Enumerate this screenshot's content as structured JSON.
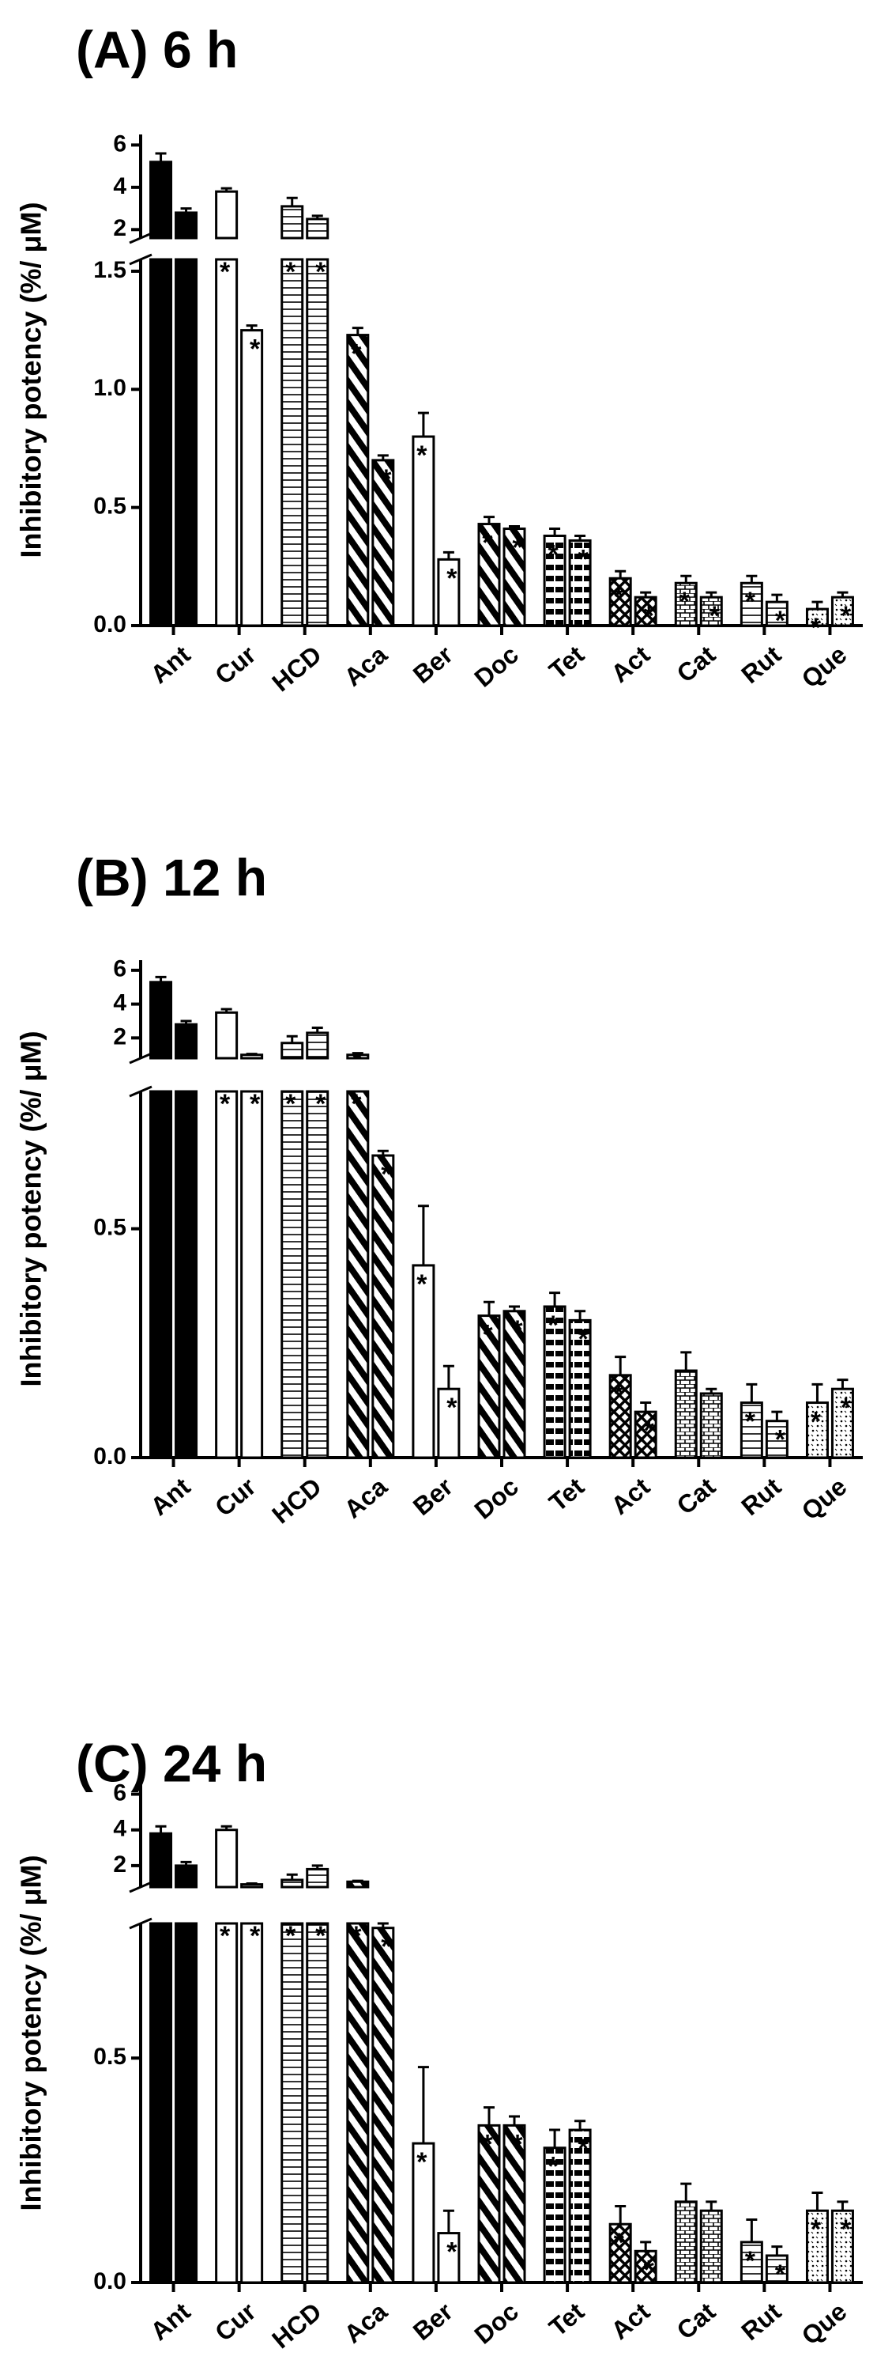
{
  "chart_data": [
    {
      "type": "bar",
      "title": "(A) 6 h",
      "y_label": "Inhibitory potency (%/ μM)",
      "significance_label": "*",
      "categories": [
        "Ant",
        "Cur",
        "HCD",
        "Aca",
        "Ber",
        "Doc",
        "Tet",
        "Act",
        "Cat",
        "Rut",
        "Que"
      ],
      "patterns": [
        "solid",
        "none",
        "hlines",
        "diag",
        "none",
        "diag",
        "hthick",
        "cross",
        "brick",
        "hlines",
        "dots"
      ],
      "series": [
        {
          "color": "#000000",
          "values": [
            5.2,
            3.8,
            3.1,
            1.23,
            0.8,
            0.43,
            0.38,
            0.2,
            0.18,
            0.18,
            0.07
          ],
          "errors": [
            0.4,
            0.15,
            0.4,
            0.03,
            0.1,
            0.03,
            0.03,
            0.03,
            0.03,
            0.03,
            0.03
          ],
          "significant": [
            true,
            true,
            true,
            true,
            true,
            true,
            true,
            true,
            true,
            true,
            true
          ]
        },
        {
          "color": "#000000",
          "values": [
            2.8,
            1.25,
            2.5,
            0.7,
            0.28,
            0.41,
            0.36,
            0.12,
            0.12,
            0.1,
            0.12
          ],
          "errors": [
            0.2,
            0.02,
            0.15,
            0.02,
            0.03,
            0.01,
            0.02,
            0.02,
            0.02,
            0.03,
            0.02
          ],
          "significant": [
            true,
            true,
            true,
            true,
            true,
            true,
            true,
            true,
            true,
            true,
            true
          ]
        }
      ],
      "upper": {
        "ylim": [
          1.6,
          6.5
        ],
        "yticks": [
          2,
          4,
          6
        ]
      },
      "lower": {
        "ylim": [
          0,
          1.55
        ],
        "yticks": [
          {
            "value": 0,
            "label": "0.0"
          },
          0.5,
          {
            "value": 1,
            "label": "1.0"
          },
          1.5
        ]
      }
    },
    {
      "type": "bar",
      "title": "(B) 12 h",
      "y_label": "Inhibitory potency (%/ μM)",
      "significance_label": "*",
      "categories": [
        "Ant",
        "Cur",
        "HCD",
        "Aca",
        "Ber",
        "Doc",
        "Tet",
        "Act",
        "Cat",
        "Rut",
        "Que"
      ],
      "patterns": [
        "solid",
        "none",
        "hlines",
        "diag",
        "none",
        "diag",
        "hthick",
        "cross",
        "brick",
        "hlines",
        "dots"
      ],
      "series": [
        {
          "color": "#000000",
          "values": [
            5.3,
            3.5,
            1.7,
            1.0,
            0.42,
            0.31,
            0.33,
            0.18,
            0.19,
            0.12,
            0.12
          ],
          "errors": [
            0.3,
            0.2,
            0.4,
            0.1,
            0.13,
            0.03,
            0.03,
            0.04,
            0.04,
            0.04,
            0.04
          ],
          "significant": [
            false,
            true,
            true,
            true,
            true,
            true,
            true,
            true,
            false,
            true,
            true
          ]
        },
        {
          "color": "#000000",
          "values": [
            2.8,
            1.0,
            2.3,
            0.66,
            0.15,
            0.32,
            0.3,
            0.1,
            0.14,
            0.08,
            0.15
          ],
          "errors": [
            0.2,
            0.05,
            0.3,
            0.01,
            0.05,
            0.01,
            0.02,
            0.02,
            0.01,
            0.02,
            0.02
          ],
          "significant": [
            true,
            true,
            true,
            true,
            true,
            true,
            true,
            true,
            false,
            true,
            true
          ]
        }
      ],
      "upper": {
        "ylim": [
          0.8,
          6.6
        ],
        "yticks": [
          2,
          4,
          6
        ]
      },
      "lower": {
        "ylim": [
          0,
          0.8
        ],
        "yticks": [
          {
            "value": 0,
            "label": "0.0"
          },
          0.5
        ]
      }
    },
    {
      "type": "bar",
      "title": "(C) 24 h",
      "y_label": "Inhibitory potency (%/ μM)",
      "significance_label": "*",
      "categories": [
        "Ant",
        "Cur",
        "HCD",
        "Aca",
        "Ber",
        "Doc",
        "Tet",
        "Act",
        "Cat",
        "Rut",
        "Que"
      ],
      "patterns": [
        "solid",
        "none",
        "hlines",
        "diag",
        "none",
        "diag",
        "hthick",
        "cross",
        "brick",
        "hlines",
        "dots"
      ],
      "series": [
        {
          "color": "#000000",
          "values": [
            3.8,
            4.0,
            1.2,
            1.1,
            0.31,
            0.35,
            0.3,
            0.13,
            0.18,
            0.09,
            0.16
          ],
          "errors": [
            0.4,
            0.2,
            0.3,
            0.05,
            0.17,
            0.04,
            0.04,
            0.04,
            0.04,
            0.05,
            0.04
          ],
          "significant": [
            false,
            true,
            true,
            true,
            true,
            true,
            true,
            true,
            false,
            true,
            true
          ]
        },
        {
          "color": "#000000",
          "values": [
            2.0,
            0.95,
            1.8,
            0.79,
            0.11,
            0.35,
            0.34,
            0.07,
            0.16,
            0.06,
            0.16
          ],
          "errors": [
            0.2,
            0.05,
            0.2,
            0.01,
            0.05,
            0.02,
            0.02,
            0.02,
            0.02,
            0.02,
            0.02
          ],
          "significant": [
            true,
            true,
            true,
            true,
            true,
            true,
            true,
            true,
            false,
            true,
            true
          ]
        }
      ],
      "upper": {
        "ylim": [
          0.8,
          6.6
        ],
        "yticks": [
          2,
          4,
          6
        ]
      },
      "lower": {
        "ylim": [
          0,
          0.8
        ],
        "yticks": [
          {
            "value": 0,
            "label": "0.0"
          },
          0.5
        ]
      }
    }
  ]
}
